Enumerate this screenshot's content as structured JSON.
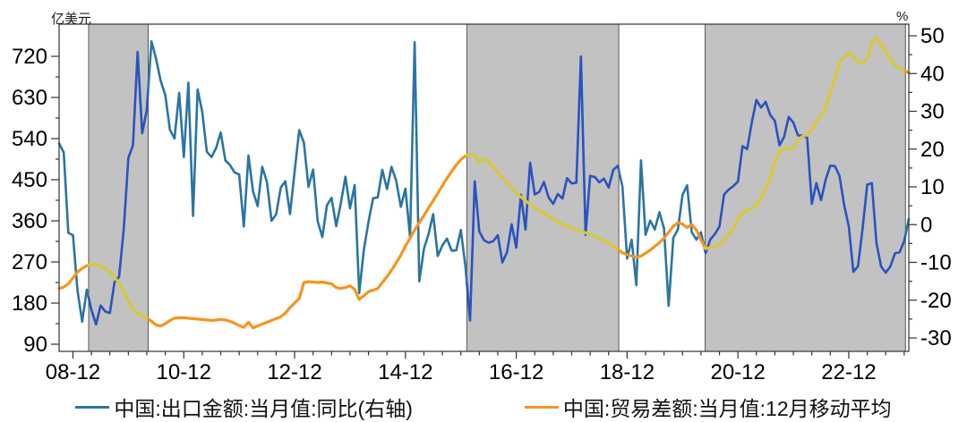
{
  "chart_data": {
    "type": "line",
    "title": "",
    "x_axis": {
      "start_month": "2008-09",
      "freq": "monthly",
      "major_tick_labels": [
        "08-12",
        "10-12",
        "12-12",
        "14-12",
        "16-12",
        "18-12",
        "20-12",
        "22-12"
      ],
      "major_tick_month_indices": [
        3,
        27,
        51,
        75,
        99,
        123,
        147,
        171
      ],
      "minor_tick_every_months": 4
    },
    "left_axis": {
      "unit": "亿美元",
      "tick_min": 90,
      "tick_max": 720,
      "tick_step": 90
    },
    "right_axis": {
      "unit": "%",
      "tick_min": -30,
      "tick_max": 50,
      "tick_step": 10
    },
    "shaded_bands": [
      {
        "from_index": 6.4,
        "to_index": 19.3,
        "period": "2009-04 ~ 2010-04"
      },
      {
        "from_index": 88.3,
        "to_index": 121.2,
        "period": "2016-02 ~ 2018-10"
      },
      {
        "from_index": 139.9,
        "to_index": 183.3,
        "period": "2020-04 ~ 2023-12"
      }
    ],
    "series": [
      {
        "name": "中国:出口金额:当月值:同比(右轴)",
        "axis": "right",
        "color": "#2B74A3",
        "band_color": "#2A52C0",
        "values": [
          21.5,
          19.1,
          -2.2,
          -2.8,
          -17.5,
          -25.7,
          -17.2,
          -22.6,
          -26.4,
          -21.4,
          -23.0,
          -23.4,
          -15.2,
          -13.8,
          -1.2,
          17.7,
          21.0,
          45.7,
          24.2,
          30.4,
          48.5,
          43.9,
          38.0,
          34.3,
          25.1,
          22.8,
          34.9,
          17.9,
          37.6,
          2.3,
          35.8,
          29.8,
          19.3,
          17.9,
          20.3,
          24.4,
          17.0,
          15.8,
          13.8,
          13.3,
          -0.5,
          18.3,
          8.8,
          4.9,
          15.3,
          11.3,
          1.0,
          2.7,
          9.8,
          11.5,
          2.8,
          14.0,
          25.0,
          21.7,
          10.0,
          14.6,
          0.9,
          -3.3,
          5.1,
          7.1,
          -0.4,
          5.6,
          12.7,
          4.3,
          10.5,
          -18.1,
          -6.6,
          0.8,
          7.0,
          7.2,
          14.5,
          9.4,
          15.3,
          11.6,
          4.7,
          9.5,
          -3.3,
          48.3,
          -15.0,
          -6.4,
          -2.5,
          2.8,
          -8.3,
          -5.5,
          -3.7,
          -6.9,
          -6.8,
          -1.4,
          -11.2,
          -25.4,
          11.5,
          -1.8,
          -4.1,
          -4.8,
          -4.4,
          -2.8,
          -10.0,
          -7.3,
          0.1,
          -6.1,
          7.9,
          -1.3,
          16.4,
          8.0,
          8.7,
          11.3,
          7.2,
          5.5,
          8.1,
          6.9,
          12.3,
          10.9,
          11.1,
          44.5,
          -2.7,
          12.9,
          12.6,
          11.2,
          12.2,
          9.8,
          14.5,
          15.6,
          10.0,
          -9.0,
          -4.0,
          -16.0,
          17.0,
          -2.7,
          1.1,
          -1.3,
          3.3,
          -1.0,
          -21.5,
          -3.5,
          -1.3,
          7.9,
          10.4,
          -2.0,
          -4.0,
          -2.0,
          -7.5,
          -4.0,
          -2.5,
          -0.5,
          8.0,
          9.3,
          10.2,
          11.4,
          20.8,
          20.0,
          27.0,
          33.0,
          31.0,
          32.5,
          29.0,
          27.5,
          21.0,
          23.2,
          28.5,
          27.0,
          23.6,
          23.6,
          23.0,
          5.5,
          11.0,
          6.5,
          12.0,
          15.6,
          15.5,
          12.9,
          5.2,
          -0.5,
          -12.5,
          -11.0,
          -1.0,
          10.6,
          11.0,
          -4.9,
          -11.1,
          -12.7,
          -11.1,
          -7.6,
          -7.3,
          -4.4,
          1.5
        ]
      },
      {
        "name": "中国:贸易差额:当月值:12月移动平均",
        "axis": "left",
        "color": "#F79420",
        "band_color": "#D9C838",
        "values": [
          212,
          215,
          222,
          235,
          248,
          256,
          262,
          265,
          265,
          262,
          256,
          248,
          237,
          223,
          203,
          184,
          168,
          158,
          152,
          148,
          140,
          132,
          130,
          135,
          142,
          147,
          148,
          148,
          147,
          146,
          145,
          144,
          143,
          142,
          143,
          144,
          143,
          140,
          136,
          131,
          127,
          138,
          126,
          130,
          134,
          138,
          142,
          146,
          150,
          158,
          170,
          180,
          190,
          225,
          227,
          226,
          225,
          226,
          224,
          222,
          214,
          212,
          214,
          218,
          210,
          188,
          196,
          205,
          208,
          212,
          225,
          238,
          252,
          268,
          285,
          305,
          322,
          340,
          356,
          372,
          388,
          404,
          420,
          437,
          453,
          468,
          482,
          494,
          502,
          506,
          503,
          488,
          496,
          489,
          478,
          467,
          455,
          443,
          432,
          421,
          412,
          404,
          396,
          389,
          382,
          376,
          370,
          364,
          358,
          353,
          348,
          344,
          340,
          337,
          334,
          330,
          326,
          322,
          317,
          311,
          304,
          297,
          290,
          286,
          283,
          280,
          283,
          289,
          296,
          304,
          312,
          322,
          335,
          348,
          356,
          353,
          345,
          352,
          340,
          318,
          299,
          302,
          305,
          308,
          318,
          330,
          342,
          365,
          378,
          383,
          387,
          395,
          410,
          430,
          455,
          490,
          512,
          519,
          517,
          520,
          536,
          545,
          548,
          560,
          577,
          590,
          608,
          641,
          672,
          706,
          719,
          726,
          720,
          706,
          706,
          714,
          749,
          760,
          745,
          730,
          716,
          700,
          694,
          688,
          684
        ]
      }
    ],
    "legend": [
      {
        "label": "中国:出口金额:当月值:同比(右轴)",
        "color": "#2B74A3"
      },
      {
        "label": "中国:贸易差额:当月值:12月移动平均",
        "color": "#F79420"
      }
    ],
    "band_fill_color": "#C2C2C2"
  }
}
